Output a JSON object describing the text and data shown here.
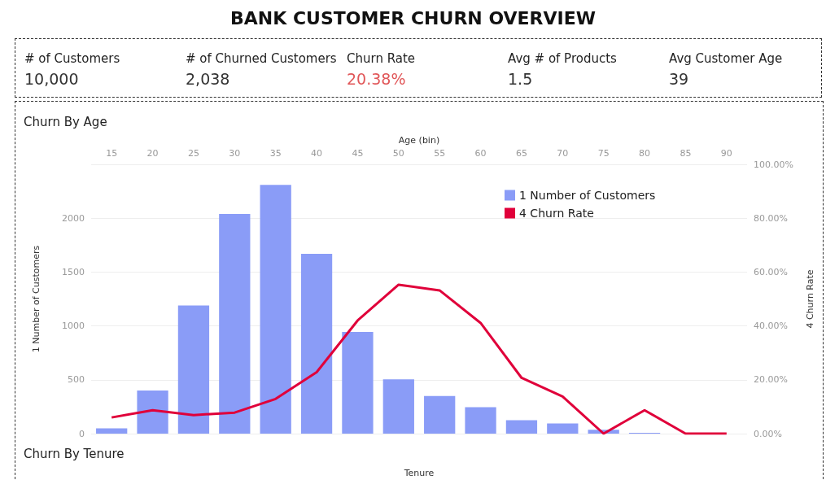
{
  "chart_data": [
    {
      "type": "other",
      "title": "BANK CUSTOMER CHURN OVERVIEW",
      "categories": [
        "# of Customers",
        "# of Churned Customers",
        "Churn Rate",
        "Avg # of Products",
        "Avg Customer Age"
      ],
      "value_labels": [
        "10,000",
        "2,038",
        "20.38%",
        "1.5",
        "39"
      ],
      "colors": [
        "#333333",
        "#333333",
        "#e15759",
        "#333333",
        "#333333"
      ]
    },
    {
      "type": "bar",
      "title": "Churn By Age",
      "xlabel": "Age (bin)",
      "ylabel": "1 Number of Customers",
      "y2label": "4 Churn Rate",
      "categories": [
        "15",
        "20",
        "25",
        "30",
        "35",
        "40",
        "45",
        "50",
        "55",
        "60",
        "65",
        "70",
        "75",
        "80",
        "85",
        "90"
      ],
      "series": [
        {
          "name": "1 Number of Customers",
          "type": "bar",
          "color": "#8a9cf7",
          "values": [
            50,
            400,
            1190,
            2040,
            2310,
            1670,
            945,
            505,
            350,
            245,
            125,
            95,
            35,
            8,
            null,
            null
          ]
        },
        {
          "name": "4 Churn Rate",
          "type": "line",
          "axis": "y2",
          "color": "#e0003a",
          "values": [
            6.0,
            8.7,
            6.9,
            7.8,
            12.9,
            22.8,
            42.0,
            55.3,
            53.2,
            41.1,
            20.7,
            13.8,
            0,
            8.7,
            0,
            0
          ]
        }
      ],
      "ylim": [
        0,
        2500
      ],
      "yticks": [
        0,
        500,
        1000,
        1500,
        2000,
        {
          "value": 2500,
          "label": null
        }
      ],
      "y2lim": [
        0,
        100
      ],
      "y2ticks": [
        {
          "value": 0,
          "label": "0.00%"
        },
        {
          "value": 20,
          "label": "20.00%"
        },
        {
          "value": 40,
          "label": "40.00%"
        },
        {
          "value": 60,
          "label": "60.00%"
        },
        {
          "value": 80,
          "label": "80.00%"
        },
        {
          "value": 100,
          "label": "100.00%"
        }
      ],
      "grid": "y",
      "legend": "top right",
      "marker": "none"
    },
    {
      "type": "other",
      "title": "Churn By Tenure",
      "xlabel": "Tenure"
    }
  ]
}
